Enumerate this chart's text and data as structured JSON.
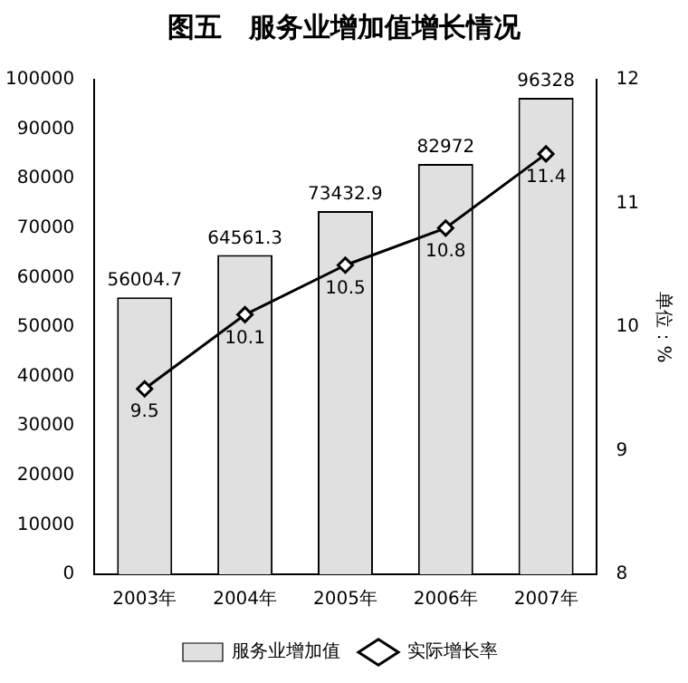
{
  "chart_data": {
    "type": "bar",
    "title": "图五　服务业增加值增长情况",
    "y2label": "单位：%",
    "categories": [
      "2003年",
      "2004年",
      "2005年",
      "2006年",
      "2007年"
    ],
    "series": [
      {
        "name": "服务业增加值",
        "color": "#e0e0e0",
        "values": [
          56004.7,
          64561.3,
          73432.9,
          82972,
          96328
        ]
      },
      {
        "name": "实际增长率",
        "type": "line",
        "axis": "y2",
        "color": "#000000",
        "marker": "diamond",
        "values": [
          9.5,
          10.1,
          10.5,
          10.8,
          11.4
        ]
      }
    ],
    "ylim": [
      0,
      100000
    ],
    "yticks": [
      0,
      10000,
      20000,
      30000,
      40000,
      50000,
      60000,
      70000,
      80000,
      90000,
      100000
    ],
    "y2lim": [
      8,
      12
    ],
    "y2ticks": [
      8,
      9,
      10,
      11,
      12
    ],
    "data_labels": true,
    "legend": "bottom",
    "grid": false
  }
}
